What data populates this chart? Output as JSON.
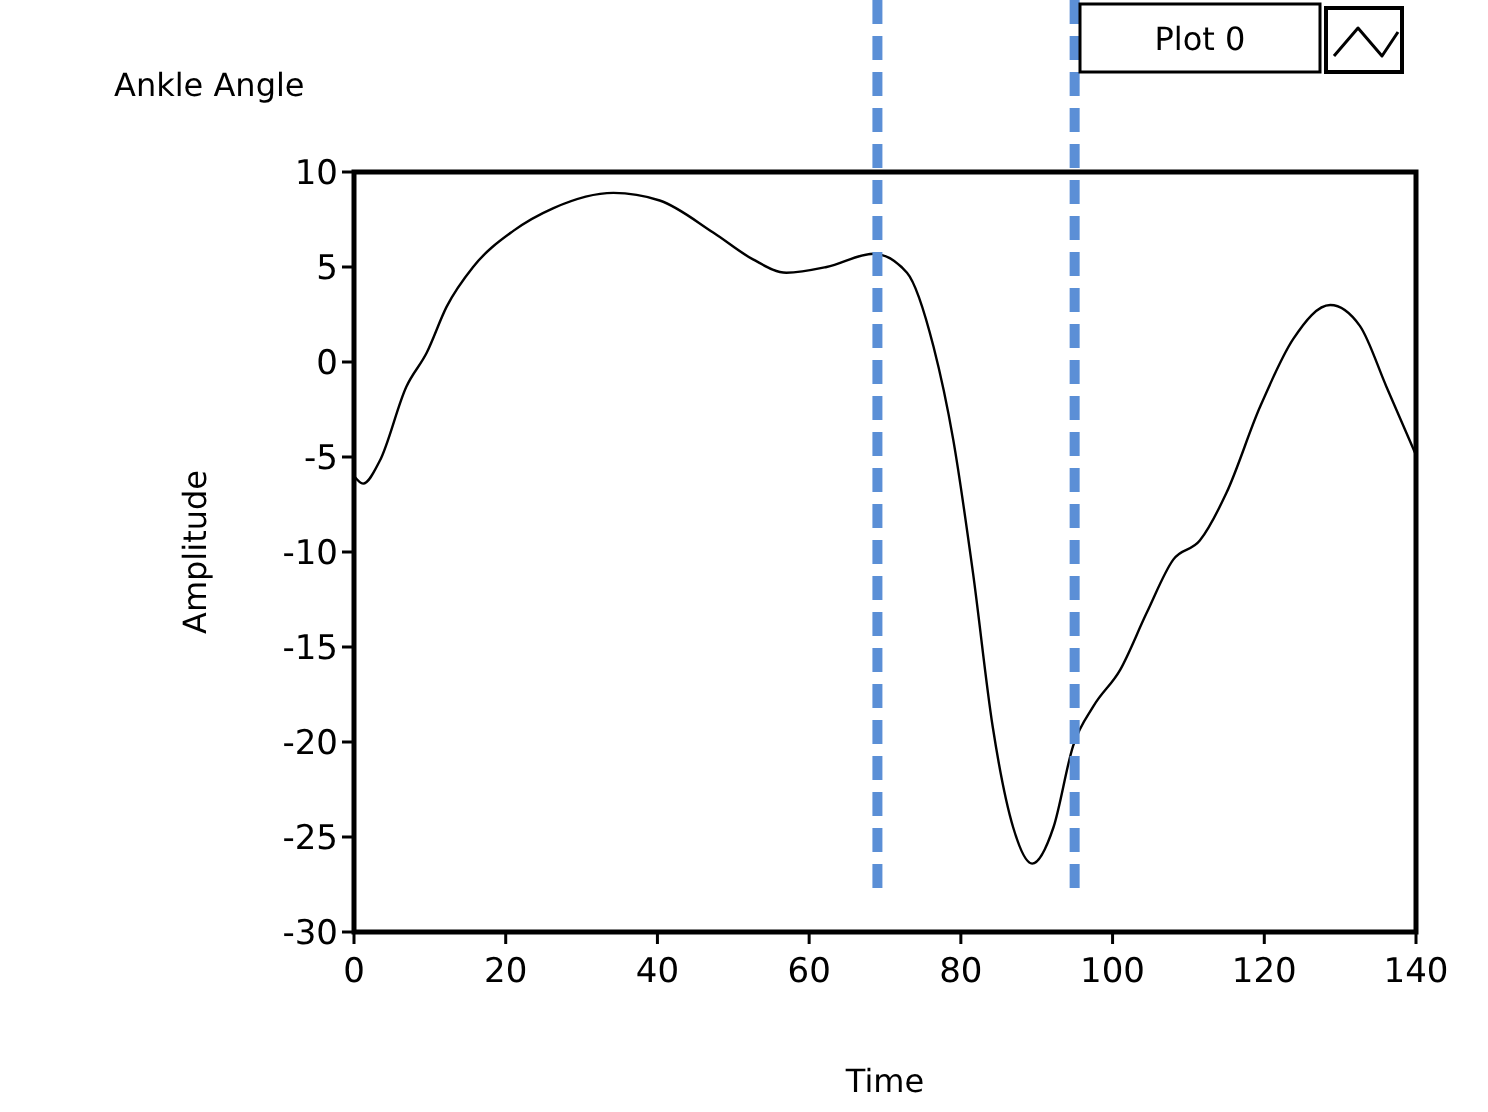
{
  "chart_data": {
    "type": "line",
    "title": "Ankle Angle",
    "xlabel": "Time",
    "ylabel": "Amplitude",
    "xlim": [
      0,
      140
    ],
    "xticks": [
      0,
      20,
      40,
      60,
      80,
      100,
      120,
      140
    ],
    "ylim": [
      -30,
      10
    ],
    "yticks": [
      -30,
      -25,
      -20,
      -15,
      -10,
      -5,
      0,
      5,
      10
    ],
    "grid": false,
    "legend": "top right",
    "marker": "none",
    "line_style": "solid",
    "ref_lines": [
      {
        "axis": "x",
        "value": 69,
        "color": "#5b8fd6",
        "line_style": "dashed"
      },
      {
        "axis": "x",
        "value": 95,
        "color": "#5b8fd6",
        "line_style": "dashed"
      }
    ],
    "series": [
      {
        "name": "Plot 0",
        "color": "#000000",
        "x": [
          0,
          1.2,
          3.4,
          6.9,
          9.6,
          12.2,
          15.7,
          21,
          26.3,
          34.2,
          40.3,
          47.4,
          52.6,
          57,
          62.3,
          68.5,
          72.9,
          76.4,
          79,
          81.6,
          84.2,
          86.9,
          89.4,
          92.2,
          94.8,
          97.5,
          101,
          104.5,
          108,
          111.5,
          115,
          119.4,
          123.8,
          128.7,
          132.6,
          136.1,
          140
        ],
        "values": [
          -6.0,
          -6.4,
          -5.2,
          -1.3,
          0.5,
          2.9,
          5.0,
          6.9,
          8.1,
          8.9,
          8.5,
          6.8,
          5.4,
          4.7,
          5.0,
          5.7,
          4.7,
          0.8,
          -4.1,
          -11.1,
          -19.2,
          -24.5,
          -26.4,
          -24.5,
          -20.2,
          -18.1,
          -16.2,
          -13.2,
          -10.4,
          -9.4,
          -6.9,
          -2.4,
          1.2,
          3.0,
          1.9,
          -1.3,
          -4.9
        ]
      }
    ]
  }
}
